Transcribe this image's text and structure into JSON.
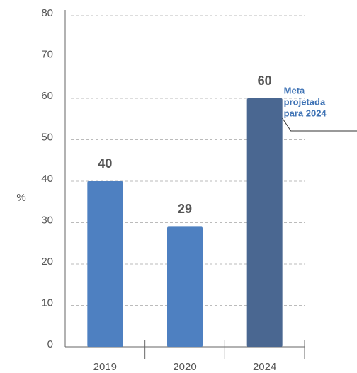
{
  "chart_data": {
    "type": "bar",
    "ylabel": "%",
    "categories": [
      "2019",
      "2020",
      "2024"
    ],
    "values": [
      40,
      29,
      60
    ],
    "colors": [
      "#4e80c1",
      "#4e80c1",
      "#4a6791"
    ],
    "ylim": [
      0,
      80
    ],
    "yticks": [
      0,
      10,
      20,
      30,
      40,
      50,
      60,
      70,
      80
    ],
    "grid": true,
    "annotation": [
      "Meta",
      "projetada",
      "para 2024"
    ]
  }
}
